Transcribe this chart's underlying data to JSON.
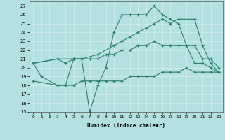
{
  "xlabel": "Humidex (Indice chaleur)",
  "xlim": [
    -0.5,
    23.5
  ],
  "ylim": [
    15,
    27.5
  ],
  "yticks": [
    15,
    16,
    17,
    18,
    19,
    20,
    21,
    22,
    23,
    24,
    25,
    26,
    27
  ],
  "xticks": [
    0,
    1,
    2,
    3,
    4,
    5,
    6,
    7,
    8,
    9,
    10,
    11,
    12,
    13,
    14,
    15,
    16,
    17,
    18,
    19,
    20,
    21,
    22,
    23
  ],
  "bg_color": "#b3e0e0",
  "line_color": "#2e7d6e",
  "grid_color": "#d0eeee",
  "lines": [
    {
      "x": [
        0,
        1,
        3,
        4,
        5,
        6,
        7,
        8,
        9,
        10,
        11,
        12,
        13,
        14,
        15,
        16,
        17,
        18,
        19,
        20,
        21,
        22,
        23
      ],
      "y": [
        20.5,
        19.0,
        18.0,
        18.0,
        21.0,
        21.0,
        15.0,
        18.0,
        20.0,
        24.0,
        26.0,
        26.0,
        26.0,
        26.0,
        27.0,
        26.0,
        25.5,
        25.0,
        22.5,
        20.5,
        20.5,
        20.0,
        19.5
      ]
    },
    {
      "x": [
        0,
        3,
        5,
        6,
        8,
        10,
        11,
        12,
        13,
        14,
        15,
        16,
        17,
        18,
        20,
        21,
        22,
        23
      ],
      "y": [
        20.5,
        21.0,
        21.0,
        21.0,
        21.5,
        22.5,
        23.0,
        23.5,
        24.0,
        24.5,
        25.0,
        25.5,
        25.0,
        25.5,
        25.5,
        22.5,
        20.5,
        19.5
      ]
    },
    {
      "x": [
        0,
        3,
        4,
        5,
        6,
        7,
        8,
        9,
        10,
        11,
        12,
        13,
        14,
        15,
        16,
        17,
        18,
        19,
        20,
        21,
        22,
        23
      ],
      "y": [
        20.5,
        21.0,
        20.5,
        21.0,
        21.0,
        21.0,
        21.0,
        21.5,
        21.5,
        22.0,
        22.0,
        22.5,
        22.5,
        23.0,
        22.5,
        22.5,
        22.5,
        22.5,
        22.5,
        21.0,
        21.0,
        20.0
      ]
    },
    {
      "x": [
        0,
        3,
        4,
        5,
        6,
        7,
        8,
        9,
        10,
        11,
        12,
        13,
        14,
        15,
        16,
        17,
        18,
        19,
        20,
        21,
        22,
        23
      ],
      "y": [
        18.5,
        18.0,
        18.0,
        18.0,
        18.5,
        18.5,
        18.5,
        18.5,
        18.5,
        18.5,
        19.0,
        19.0,
        19.0,
        19.0,
        19.5,
        19.5,
        19.5,
        20.0,
        19.5,
        19.5,
        19.5,
        19.5
      ]
    }
  ]
}
